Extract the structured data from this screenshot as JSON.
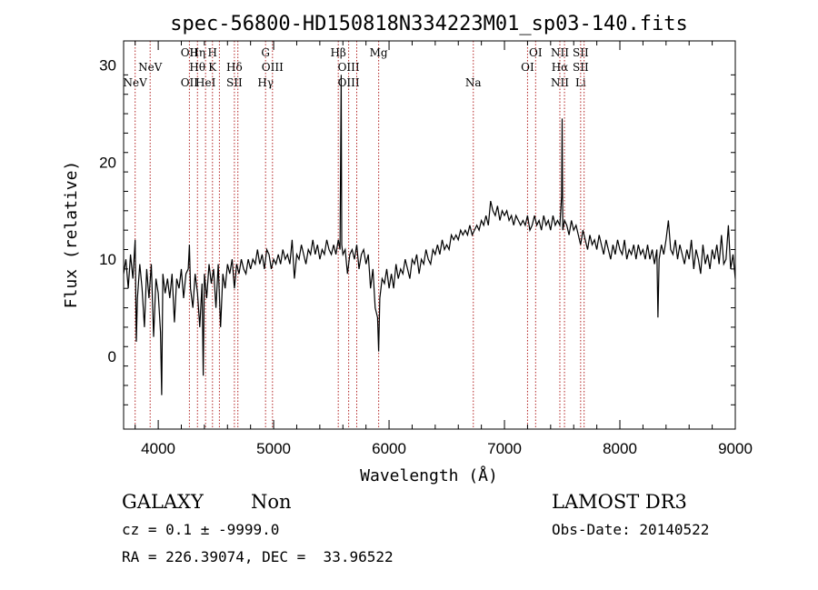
{
  "chart_data": {
    "type": "line",
    "title": "spec-56800-HD150818N334223M01_sp03-140.fits",
    "xlabel": "Wavelength (Å)",
    "ylabel": "Flux (relative)",
    "xlim": [
      3700,
      9000
    ],
    "ylim": [
      -7.5,
      32.5
    ],
    "xticks": [
      4000,
      5000,
      6000,
      7000,
      8000,
      9000
    ],
    "xtick_labels": [
      "4000",
      "5000",
      "6000",
      "7000",
      "8000",
      "9000"
    ],
    "yticks": [
      0,
      10,
      20,
      30
    ],
    "ytick_labels": [
      "0",
      "10",
      "20",
      "30"
    ],
    "series": [
      {
        "name": "spectrum",
        "color": "#000000",
        "points": [
          [
            3700,
            8.5
          ],
          [
            3720,
            10.0
          ],
          [
            3740,
            7.0
          ],
          [
            3760,
            10.5
          ],
          [
            3780,
            8.0
          ],
          [
            3800,
            12.0
          ],
          [
            3810,
            1.5
          ],
          [
            3820,
            6.0
          ],
          [
            3840,
            9.5
          ],
          [
            3860,
            7.0
          ],
          [
            3880,
            3.0
          ],
          [
            3900,
            9.0
          ],
          [
            3920,
            6.0
          ],
          [
            3940,
            9.5
          ],
          [
            3960,
            2.0
          ],
          [
            3980,
            8.0
          ],
          [
            4000,
            6.5
          ],
          [
            4020,
            2.5
          ],
          [
            4030,
            -4.0
          ],
          [
            4040,
            8.5
          ],
          [
            4060,
            6.5
          ],
          [
            4080,
            8.0
          ],
          [
            4100,
            6.0
          ],
          [
            4120,
            8.5
          ],
          [
            4140,
            3.5
          ],
          [
            4160,
            8.0
          ],
          [
            4180,
            7.0
          ],
          [
            4200,
            9.0
          ],
          [
            4220,
            6.0
          ],
          [
            4240,
            8.5
          ],
          [
            4260,
            9.0
          ],
          [
            4270,
            11.5
          ],
          [
            4280,
            7.0
          ],
          [
            4300,
            5.0
          ],
          [
            4320,
            8.5
          ],
          [
            4340,
            6.5
          ],
          [
            4360,
            3.0
          ],
          [
            4380,
            7.5
          ],
          [
            4390,
            -2.0
          ],
          [
            4400,
            8.5
          ],
          [
            4420,
            6.0
          ],
          [
            4440,
            9.5
          ],
          [
            4460,
            7.5
          ],
          [
            4480,
            9.0
          ],
          [
            4500,
            5.0
          ],
          [
            4520,
            9.5
          ],
          [
            4540,
            3.0
          ],
          [
            4560,
            8.5
          ],
          [
            4580,
            7.0
          ],
          [
            4600,
            9.5
          ],
          [
            4620,
            8.5
          ],
          [
            4640,
            10.0
          ],
          [
            4660,
            7.0
          ],
          [
            4680,
            9.5
          ],
          [
            4700,
            8.5
          ],
          [
            4720,
            10.0
          ],
          [
            4740,
            9.0
          ],
          [
            4760,
            8.5
          ],
          [
            4780,
            10.0
          ],
          [
            4800,
            9.0
          ],
          [
            4820,
            10.0
          ],
          [
            4840,
            9.5
          ],
          [
            4860,
            11.0
          ],
          [
            4880,
            9.5
          ],
          [
            4900,
            10.5
          ],
          [
            4920,
            9.0
          ],
          [
            4940,
            11.0
          ],
          [
            4960,
            10.5
          ],
          [
            4980,
            9.0
          ],
          [
            5000,
            10.0
          ],
          [
            5020,
            9.5
          ],
          [
            5040,
            10.5
          ],
          [
            5060,
            9.5
          ],
          [
            5080,
            11.0
          ],
          [
            5100,
            10.0
          ],
          [
            5120,
            10.5
          ],
          [
            5140,
            9.5
          ],
          [
            5160,
            12.0
          ],
          [
            5180,
            8.0
          ],
          [
            5200,
            10.5
          ],
          [
            5220,
            10.0
          ],
          [
            5240,
            11.5
          ],
          [
            5260,
            10.5
          ],
          [
            5280,
            9.5
          ],
          [
            5300,
            11.0
          ],
          [
            5320,
            10.5
          ],
          [
            5340,
            12.0
          ],
          [
            5360,
            10.5
          ],
          [
            5380,
            11.5
          ],
          [
            5400,
            10.0
          ],
          [
            5420,
            11.0
          ],
          [
            5440,
            10.5
          ],
          [
            5460,
            12.0
          ],
          [
            5480,
            11.0
          ],
          [
            5500,
            10.5
          ],
          [
            5520,
            11.5
          ],
          [
            5540,
            10.5
          ],
          [
            5560,
            12.0
          ],
          [
            5575,
            11.0
          ],
          [
            5585,
            29.0
          ],
          [
            5590,
            11.5
          ],
          [
            5600,
            10.5
          ],
          [
            5620,
            11.0
          ],
          [
            5640,
            8.5
          ],
          [
            5660,
            10.5
          ],
          [
            5680,
            11.0
          ],
          [
            5700,
            10.0
          ],
          [
            5720,
            11.5
          ],
          [
            5740,
            9.0
          ],
          [
            5760,
            10.5
          ],
          [
            5780,
            11.0
          ],
          [
            5800,
            9.5
          ],
          [
            5820,
            10.5
          ],
          [
            5840,
            7.0
          ],
          [
            5860,
            9.0
          ],
          [
            5880,
            5.0
          ],
          [
            5900,
            4.0
          ],
          [
            5910,
            0.5
          ],
          [
            5920,
            6.0
          ],
          [
            5940,
            8.0
          ],
          [
            5960,
            7.5
          ],
          [
            5980,
            9.0
          ],
          [
            6000,
            7.0
          ],
          [
            6020,
            8.5
          ],
          [
            6040,
            7.0
          ],
          [
            6060,
            9.5
          ],
          [
            6080,
            8.0
          ],
          [
            6100,
            9.0
          ],
          [
            6120,
            8.5
          ],
          [
            6140,
            10.0
          ],
          [
            6160,
            9.0
          ],
          [
            6180,
            8.0
          ],
          [
            6200,
            10.0
          ],
          [
            6220,
            9.5
          ],
          [
            6240,
            10.5
          ],
          [
            6260,
            8.5
          ],
          [
            6280,
            10.0
          ],
          [
            6300,
            9.5
          ],
          [
            6320,
            11.0
          ],
          [
            6340,
            10.0
          ],
          [
            6360,
            9.5
          ],
          [
            6380,
            11.0
          ],
          [
            6400,
            10.5
          ],
          [
            6420,
            11.5
          ],
          [
            6440,
            10.5
          ],
          [
            6460,
            12.0
          ],
          [
            6480,
            11.0
          ],
          [
            6500,
            11.5
          ],
          [
            6520,
            11.0
          ],
          [
            6540,
            12.5
          ],
          [
            6560,
            12.0
          ],
          [
            6580,
            12.5
          ],
          [
            6600,
            12.0
          ],
          [
            6620,
            13.0
          ],
          [
            6640,
            12.5
          ],
          [
            6660,
            13.0
          ],
          [
            6680,
            12.5
          ],
          [
            6700,
            13.5
          ],
          [
            6720,
            12.5
          ],
          [
            6740,
            13.0
          ],
          [
            6760,
            13.5
          ],
          [
            6780,
            13.0
          ],
          [
            6800,
            14.0
          ],
          [
            6820,
            13.5
          ],
          [
            6840,
            14.5
          ],
          [
            6860,
            13.5
          ],
          [
            6880,
            16.0
          ],
          [
            6900,
            15.0
          ],
          [
            6920,
            14.5
          ],
          [
            6940,
            15.5
          ],
          [
            6960,
            14.0
          ],
          [
            6980,
            15.0
          ],
          [
            7000,
            14.5
          ],
          [
            7020,
            15.0
          ],
          [
            7040,
            14.0
          ],
          [
            7060,
            14.5
          ],
          [
            7080,
            13.5
          ],
          [
            7100,
            14.5
          ],
          [
            7120,
            14.0
          ],
          [
            7140,
            13.5
          ],
          [
            7160,
            14.0
          ],
          [
            7180,
            13.5
          ],
          [
            7200,
            14.5
          ],
          [
            7220,
            13.0
          ],
          [
            7240,
            13.5
          ],
          [
            7260,
            14.5
          ],
          [
            7280,
            13.5
          ],
          [
            7300,
            14.0
          ],
          [
            7320,
            13.0
          ],
          [
            7340,
            14.5
          ],
          [
            7360,
            13.5
          ],
          [
            7380,
            14.0
          ],
          [
            7400,
            13.0
          ],
          [
            7420,
            14.5
          ],
          [
            7440,
            13.5
          ],
          [
            7460,
            14.0
          ],
          [
            7480,
            13.5
          ],
          [
            7495,
            16.5
          ],
          [
            7500,
            24.5
          ],
          [
            7505,
            13.0
          ],
          [
            7520,
            14.0
          ],
          [
            7540,
            13.5
          ],
          [
            7560,
            12.5
          ],
          [
            7580,
            14.0
          ],
          [
            7600,
            13.0
          ],
          [
            7620,
            13.5
          ],
          [
            7640,
            12.5
          ],
          [
            7660,
            11.5
          ],
          [
            7680,
            13.0
          ],
          [
            7700,
            12.0
          ],
          [
            7720,
            11.0
          ],
          [
            7740,
            12.5
          ],
          [
            7760,
            11.5
          ],
          [
            7780,
            12.0
          ],
          [
            7800,
            11.0
          ],
          [
            7820,
            12.5
          ],
          [
            7840,
            11.5
          ],
          [
            7860,
            10.5
          ],
          [
            7880,
            12.0
          ],
          [
            7900,
            11.0
          ],
          [
            7920,
            10.0
          ],
          [
            7940,
            11.5
          ],
          [
            7960,
            10.5
          ],
          [
            7980,
            12.0
          ],
          [
            8000,
            11.0
          ],
          [
            8020,
            10.5
          ],
          [
            8040,
            12.0
          ],
          [
            8060,
            10.0
          ],
          [
            8080,
            11.0
          ],
          [
            8100,
            10.5
          ],
          [
            8120,
            11.5
          ],
          [
            8140,
            10.0
          ],
          [
            8160,
            11.5
          ],
          [
            8180,
            10.5
          ],
          [
            8200,
            11.0
          ],
          [
            8220,
            10.0
          ],
          [
            8240,
            11.5
          ],
          [
            8260,
            10.0
          ],
          [
            8280,
            11.0
          ],
          [
            8300,
            9.5
          ],
          [
            8320,
            11.0
          ],
          [
            8330,
            4.0
          ],
          [
            8340,
            10.0
          ],
          [
            8360,
            11.5
          ],
          [
            8380,
            10.5
          ],
          [
            8400,
            12.0
          ],
          [
            8420,
            14.0
          ],
          [
            8440,
            11.0
          ],
          [
            8460,
            10.5
          ],
          [
            8480,
            12.0
          ],
          [
            8500,
            10.0
          ],
          [
            8520,
            11.5
          ],
          [
            8540,
            10.5
          ],
          [
            8560,
            9.5
          ],
          [
            8580,
            11.0
          ],
          [
            8600,
            10.0
          ],
          [
            8620,
            12.0
          ],
          [
            8640,
            9.0
          ],
          [
            8660,
            11.0
          ],
          [
            8680,
            10.0
          ],
          [
            8700,
            8.5
          ],
          [
            8720,
            11.5
          ],
          [
            8740,
            9.5
          ],
          [
            8760,
            10.5
          ],
          [
            8780,
            9.0
          ],
          [
            8800,
            11.0
          ],
          [
            8820,
            10.0
          ],
          [
            8840,
            11.5
          ],
          [
            8860,
            9.5
          ],
          [
            8880,
            12.5
          ],
          [
            8900,
            9.5
          ],
          [
            8920,
            10.0
          ],
          [
            8940,
            13.5
          ],
          [
            8960,
            9.0
          ],
          [
            8980,
            10.5
          ],
          [
            9000,
            8.0
          ]
        ]
      }
    ],
    "lines": [
      {
        "wavelength": 3800,
        "top": "",
        "mid": "",
        "bottom": "NeV"
      },
      {
        "wavelength": 3930,
        "top": "",
        "mid": "NeV",
        "bottom": ""
      },
      {
        "wavelength": 4270,
        "top": "OII",
        "mid": "",
        "bottom": "OII"
      },
      {
        "wavelength": 4340,
        "top": "Hη",
        "mid": "Hθ",
        "bottom": ""
      },
      {
        "wavelength": 4410,
        "top": "",
        "mid": "",
        "bottom": "HeI"
      },
      {
        "wavelength": 4470,
        "top": "H",
        "mid": "K",
        "bottom": ""
      },
      {
        "wavelength": 4530,
        "top": "",
        "mid": "",
        "bottom": ""
      },
      {
        "wavelength": 4660,
        "top": "",
        "mid": "Hδ",
        "bottom": "SII"
      },
      {
        "wavelength": 4690,
        "top": "",
        "mid": "",
        "bottom": ""
      },
      {
        "wavelength": 4930,
        "top": "G",
        "mid": "",
        "bottom": "Hγ"
      },
      {
        "wavelength": 4990,
        "top": "",
        "mid": "OIII",
        "bottom": ""
      },
      {
        "wavelength": 5560,
        "top": "Hβ",
        "mid": "",
        "bottom": ""
      },
      {
        "wavelength": 5650,
        "top": "",
        "mid": "OIII",
        "bottom": "OIII"
      },
      {
        "wavelength": 5720,
        "top": "",
        "mid": "",
        "bottom": ""
      },
      {
        "wavelength": 5910,
        "top": "Mg",
        "mid": "",
        "bottom": ""
      },
      {
        "wavelength": 6730,
        "top": "",
        "mid": "",
        "bottom": "Na"
      },
      {
        "wavelength": 7200,
        "top": "",
        "mid": "OI",
        "bottom": ""
      },
      {
        "wavelength": 7270,
        "top": "OI",
        "mid": "",
        "bottom": ""
      },
      {
        "wavelength": 7480,
        "top": "NII",
        "mid": "Hα",
        "bottom": "NII"
      },
      {
        "wavelength": 7520,
        "top": "",
        "mid": "",
        "bottom": ""
      },
      {
        "wavelength": 7660,
        "top": "SII",
        "mid": "SII",
        "bottom": "Li"
      },
      {
        "wavelength": 7690,
        "top": "",
        "mid": "",
        "bottom": ""
      }
    ],
    "annotations": {
      "class": "GALAXY",
      "subclass": "Non",
      "survey": "LAMOST DR3",
      "cz": "cz = 0.1 ± -9999.0",
      "obs_date": "Obs-Date: 20140522",
      "coords": "RA = 226.39074, DEC =  33.96522"
    },
    "colors": {
      "spectrum": "#000000",
      "lines": "#b22222",
      "axes": "#000000"
    }
  }
}
